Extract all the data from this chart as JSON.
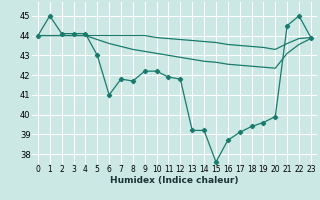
{
  "xlabel": "Humidex (Indice chaleur)",
  "background_color": "#cce8e4",
  "grid_color": "#ffffff",
  "line_color": "#1a7a6e",
  "xlim_min": -0.5,
  "xlim_max": 23.5,
  "ylim_min": 37.5,
  "ylim_max": 45.7,
  "xticks": [
    0,
    1,
    2,
    3,
    4,
    5,
    6,
    7,
    8,
    9,
    10,
    11,
    12,
    13,
    14,
    15,
    16,
    17,
    18,
    19,
    20,
    21,
    22,
    23
  ],
  "yticks": [
    38,
    39,
    40,
    41,
    42,
    43,
    44,
    45
  ],
  "line1_y": [
    44.0,
    44.0,
    44.0,
    44.0,
    44.0,
    44.0,
    44.0,
    44.0,
    44.0,
    44.0,
    43.9,
    43.85,
    43.8,
    43.75,
    43.7,
    43.65,
    43.55,
    43.5,
    43.45,
    43.4,
    43.3,
    43.6,
    43.85,
    43.9
  ],
  "line2_y": [
    44.0,
    44.0,
    44.0,
    44.0,
    44.0,
    43.8,
    43.6,
    43.45,
    43.3,
    43.2,
    43.1,
    43.0,
    42.9,
    42.8,
    42.7,
    42.65,
    42.55,
    42.5,
    42.45,
    42.4,
    42.35,
    43.1,
    43.55,
    43.85
  ],
  "line3_y": [
    44.0,
    45.0,
    44.1,
    44.1,
    44.1,
    43.0,
    41.0,
    41.8,
    41.7,
    42.2,
    42.2,
    41.9,
    41.8,
    39.2,
    39.2,
    37.6,
    38.7,
    39.1,
    39.4,
    39.6,
    39.9,
    44.5,
    45.0,
    43.9
  ],
  "xlabel_fontsize": 6.5,
  "tick_fontsize": 5.5,
  "ytick_fontsize": 6.0,
  "linewidth": 0.9,
  "marker_size": 2.2
}
